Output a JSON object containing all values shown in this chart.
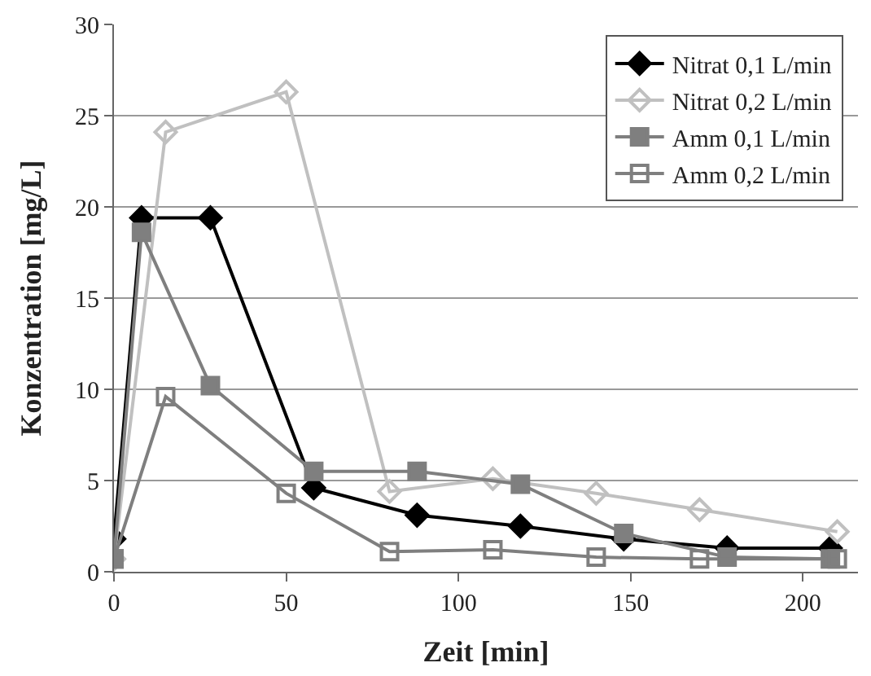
{
  "chart_data": {
    "type": "line",
    "xlabel": "Zeit [min]",
    "ylabel": "Konzentration [mg/L]",
    "xlim": [
      0,
      216
    ],
    "xticks": [
      0,
      50,
      100,
      150,
      200
    ],
    "ylim": [
      0,
      30
    ],
    "yticks": [
      0,
      5,
      10,
      15,
      20,
      25,
      30
    ],
    "grid": "y",
    "legend": "top right",
    "line_style": "solid",
    "series": [
      {
        "name": "Nitrat 0,1 L/min",
        "color": "#000000",
        "marker": "diamond",
        "x": [
          0,
          8,
          28,
          58,
          88,
          118,
          148,
          178,
          208
        ],
        "values": [
          1.8,
          19.4,
          19.4,
          4.6,
          3.1,
          2.5,
          1.8,
          1.3,
          1.3
        ]
      },
      {
        "name": "Nitrat 0,2 L/min",
        "color": "#c0c0c0",
        "marker": "diamond-open",
        "x": [
          0,
          15,
          50,
          80,
          110,
          140,
          170,
          210
        ],
        "values": [
          0.7,
          24.1,
          26.3,
          4.4,
          5.1,
          4.3,
          3.4,
          2.2
        ]
      },
      {
        "name": "Amm 0,1 L/min",
        "color": "#7f7f7f",
        "marker": "square",
        "x": [
          0,
          8,
          28,
          58,
          88,
          118,
          148,
          178,
          208
        ],
        "values": [
          0.7,
          18.6,
          10.2,
          5.5,
          5.5,
          4.8,
          2.1,
          0.8,
          0.7
        ]
      },
      {
        "name": "Amm 0,2 L/min",
        "color": "#7f7f7f",
        "marker": "square-open",
        "x": [
          0,
          15,
          50,
          80,
          110,
          140,
          170,
          210
        ],
        "values": [
          0.7,
          9.6,
          4.3,
          1.1,
          1.2,
          0.8,
          0.7,
          0.7
        ]
      }
    ]
  }
}
